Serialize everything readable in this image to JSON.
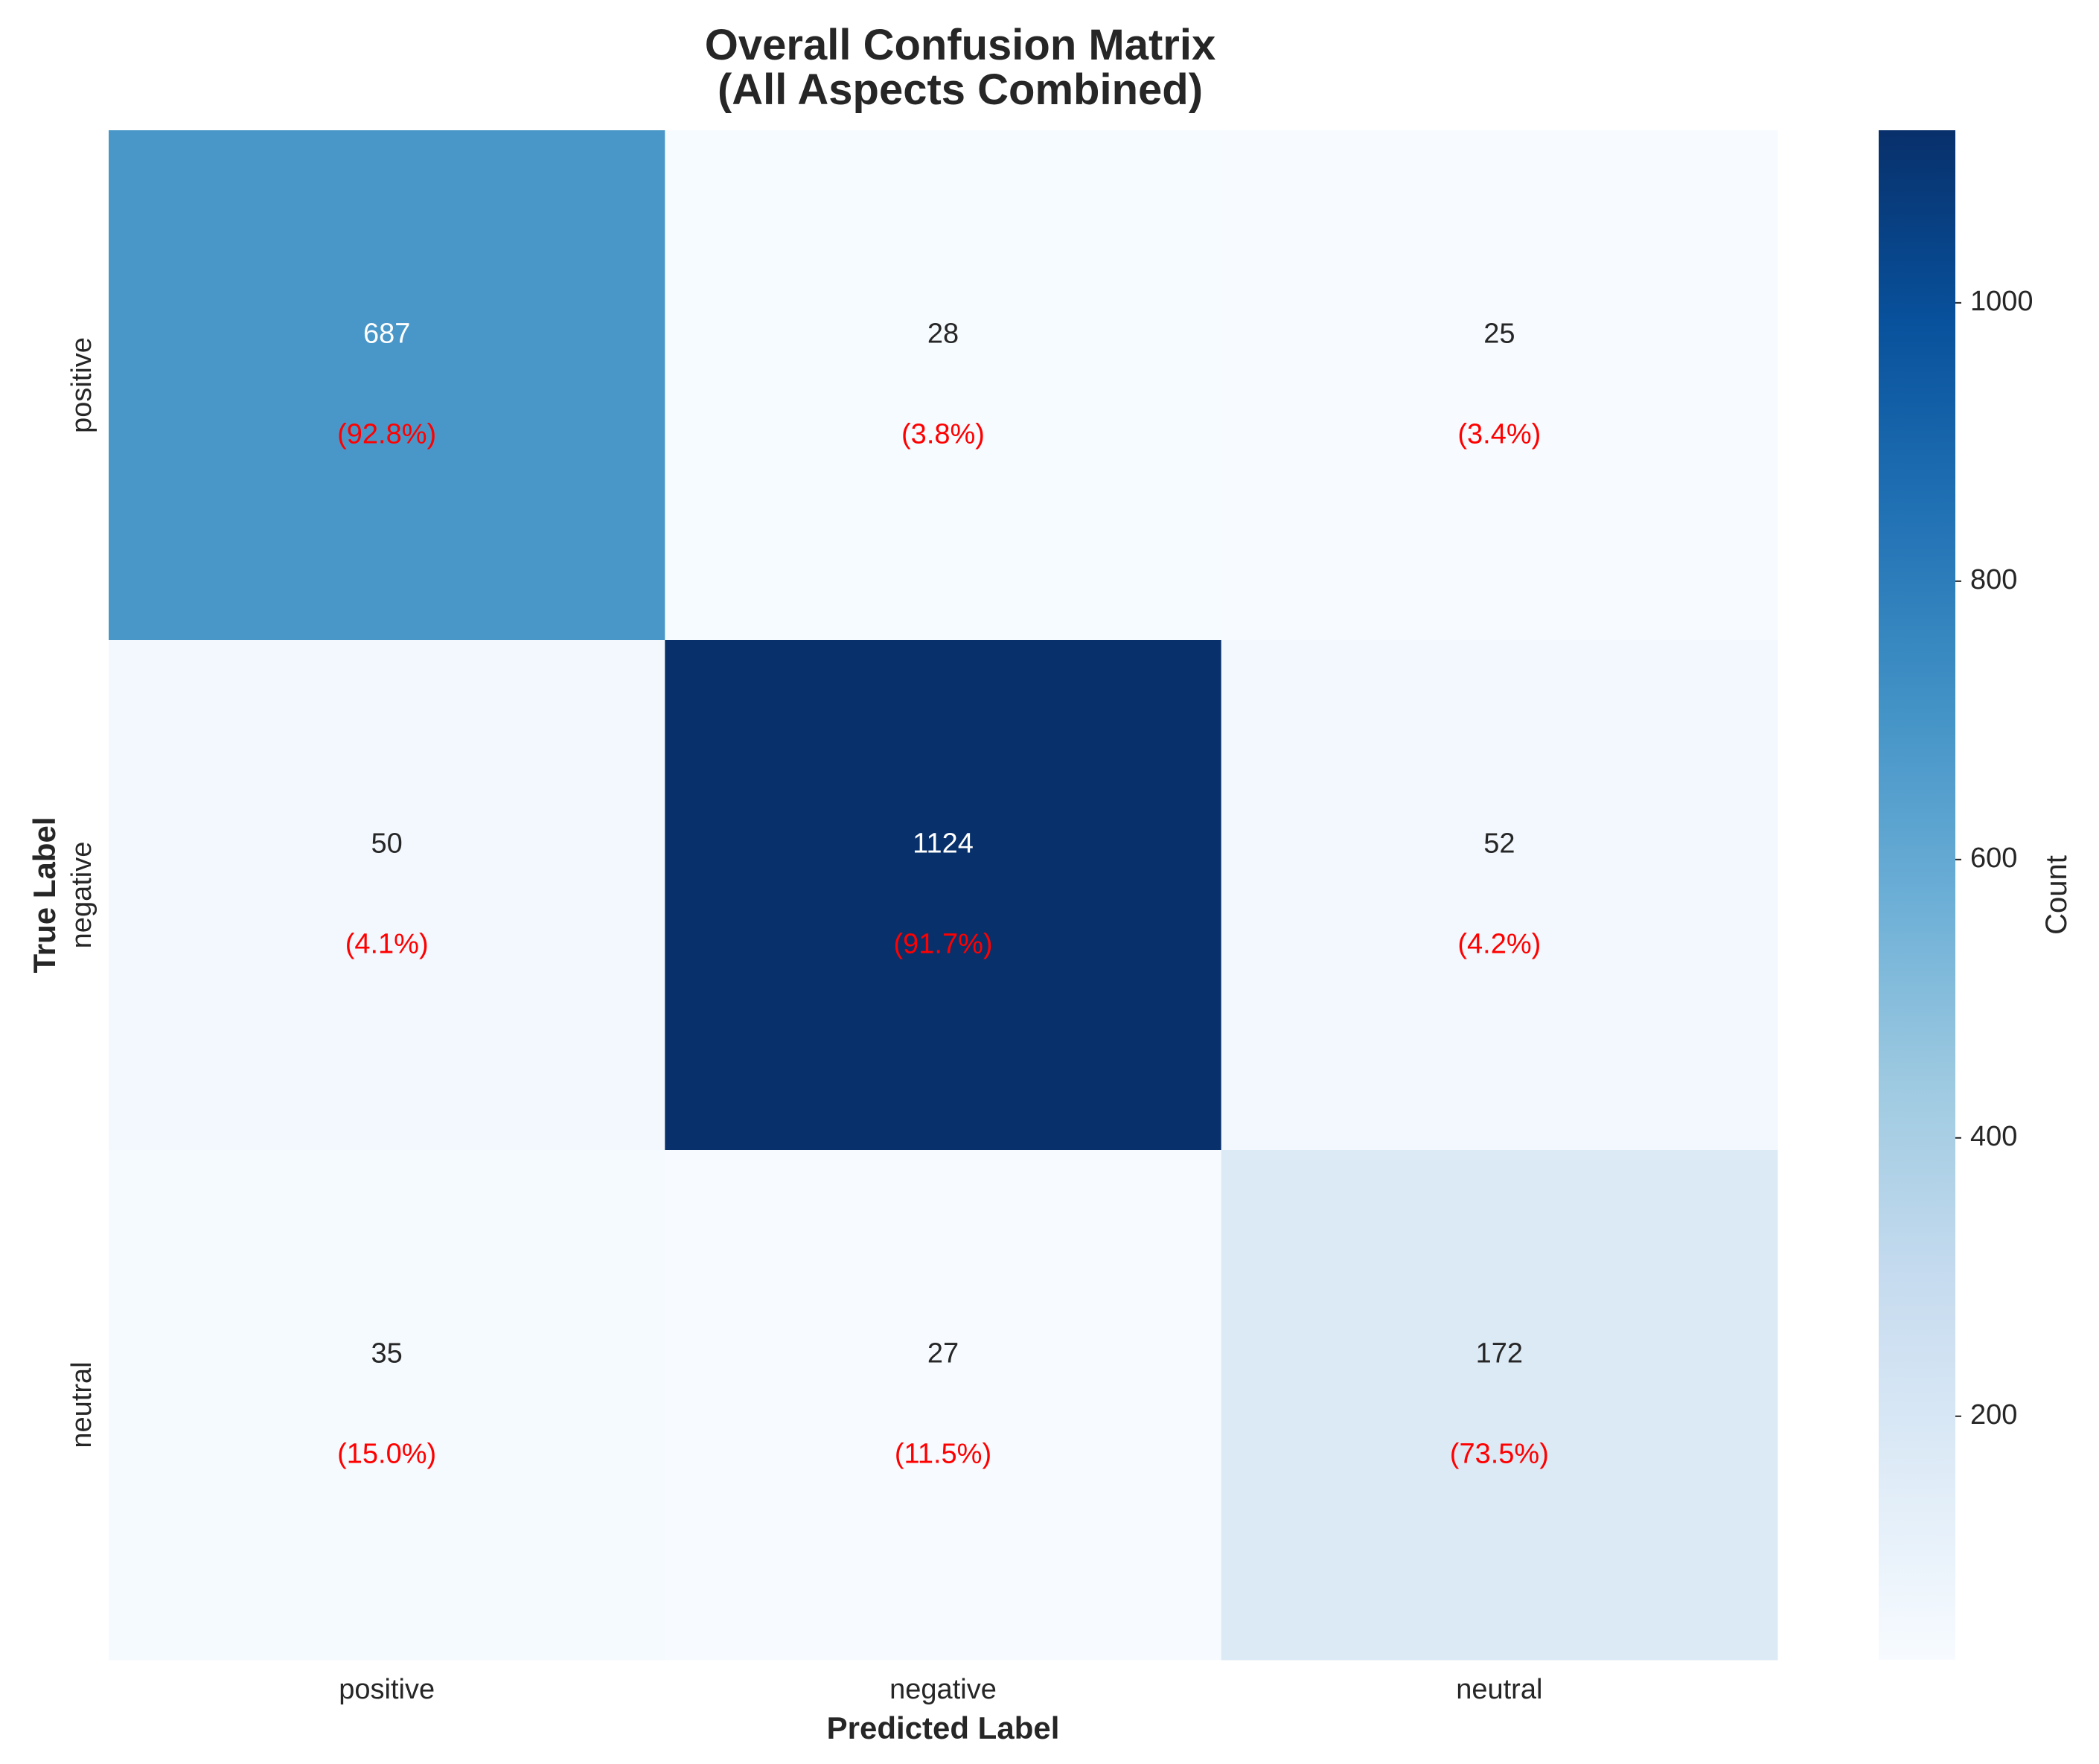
{
  "chart_data": {
    "type": "heatmap",
    "title": "Overall Confusion Matrix\n(All Aspects Combined)",
    "xlabel": "Predicted Label",
    "ylabel": "True Label",
    "x_categories": [
      "positive",
      "negative",
      "neutral"
    ],
    "y_categories": [
      "positive",
      "negative",
      "neutral"
    ],
    "values": [
      [
        687,
        28,
        25
      ],
      [
        50,
        1124,
        52
      ],
      [
        35,
        27,
        172
      ]
    ],
    "percentages": [
      [
        "(92.8%)",
        "(3.8%)",
        "(3.4%)"
      ],
      [
        "(4.1%)",
        "(91.7%)",
        "(4.2%)"
      ],
      [
        "(15.0%)",
        "(11.5%)",
        "(73.5%)"
      ]
    ],
    "colormap": "Blues",
    "value_range": [
      25,
      1124
    ],
    "colorbar": {
      "label": "Count",
      "ticks": [
        200,
        400,
        600,
        800,
        1000
      ]
    },
    "percent_color": "#ff0000",
    "grid": false
  }
}
